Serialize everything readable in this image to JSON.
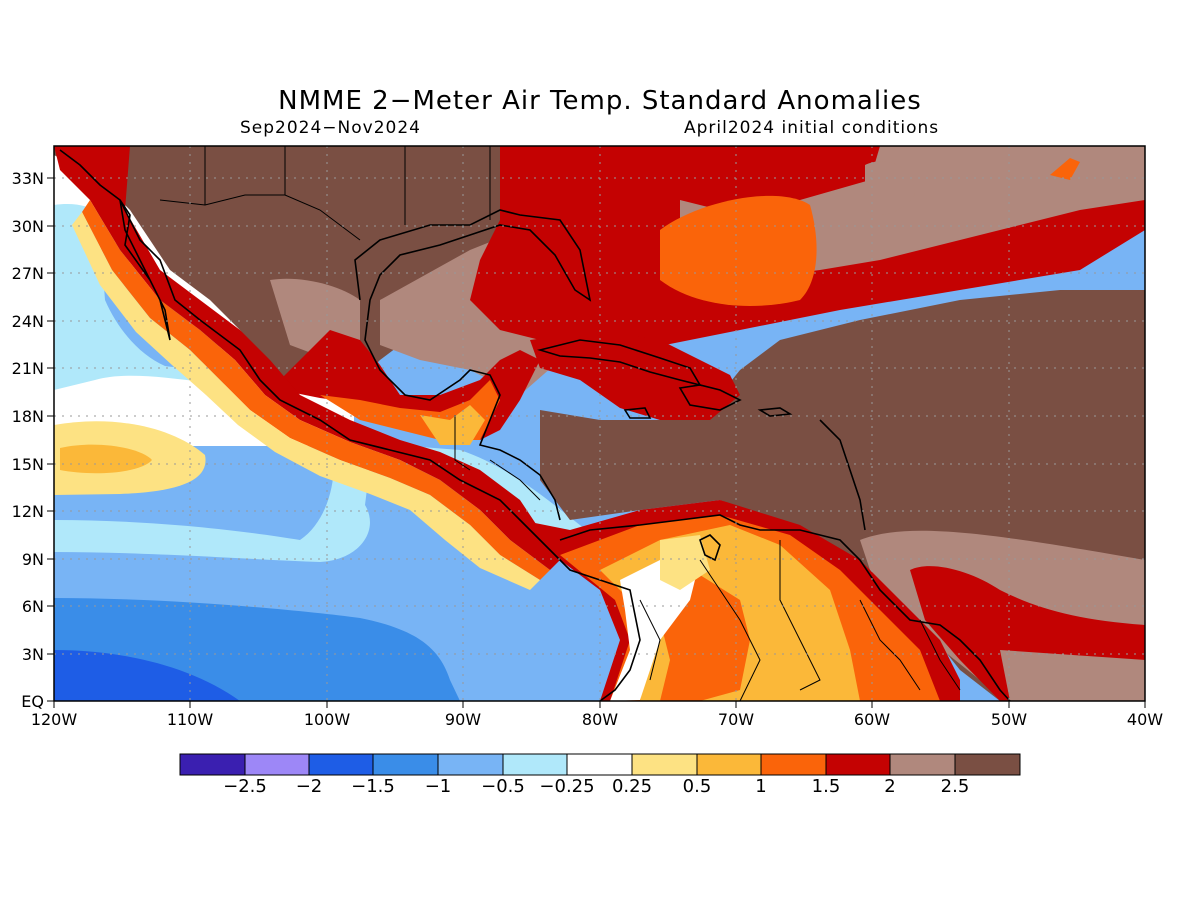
{
  "title": "NMME 2−Meter Air Temp. Standard Anomalies",
  "period": "Sep2024−Nov2024",
  "init": "April2024 initial conditions",
  "map": {
    "lon_range": [
      -120,
      -40
    ],
    "lat_range": [
      0,
      35
    ],
    "grid": "dotted",
    "lat_ticks": [
      "EQ",
      "3N",
      "6N",
      "9N",
      "12N",
      "15N",
      "18N",
      "21N",
      "24N",
      "27N",
      "30N",
      "33N"
    ],
    "lon_ticks": [
      "120W",
      "110W",
      "100W",
      "90W",
      "80W",
      "70W",
      "60W",
      "50W",
      "40W"
    ]
  },
  "colorbar": {
    "colors": [
      "#3a1fb0",
      "#9d87f7",
      "#1e5de6",
      "#3a8de8",
      "#78b4f5",
      "#b0e8fa",
      "#ffffff",
      "#fde283",
      "#fbb839",
      "#fa640a",
      "#c40202",
      "#b0887d",
      "#7a4f43"
    ],
    "labels": [
      "−2.5",
      "−2",
      "−1.5",
      "−1",
      "−0.5",
      "−0.25",
      "0.25",
      "0.5",
      "1",
      "1.5",
      "2",
      "2.5"
    ]
  }
}
